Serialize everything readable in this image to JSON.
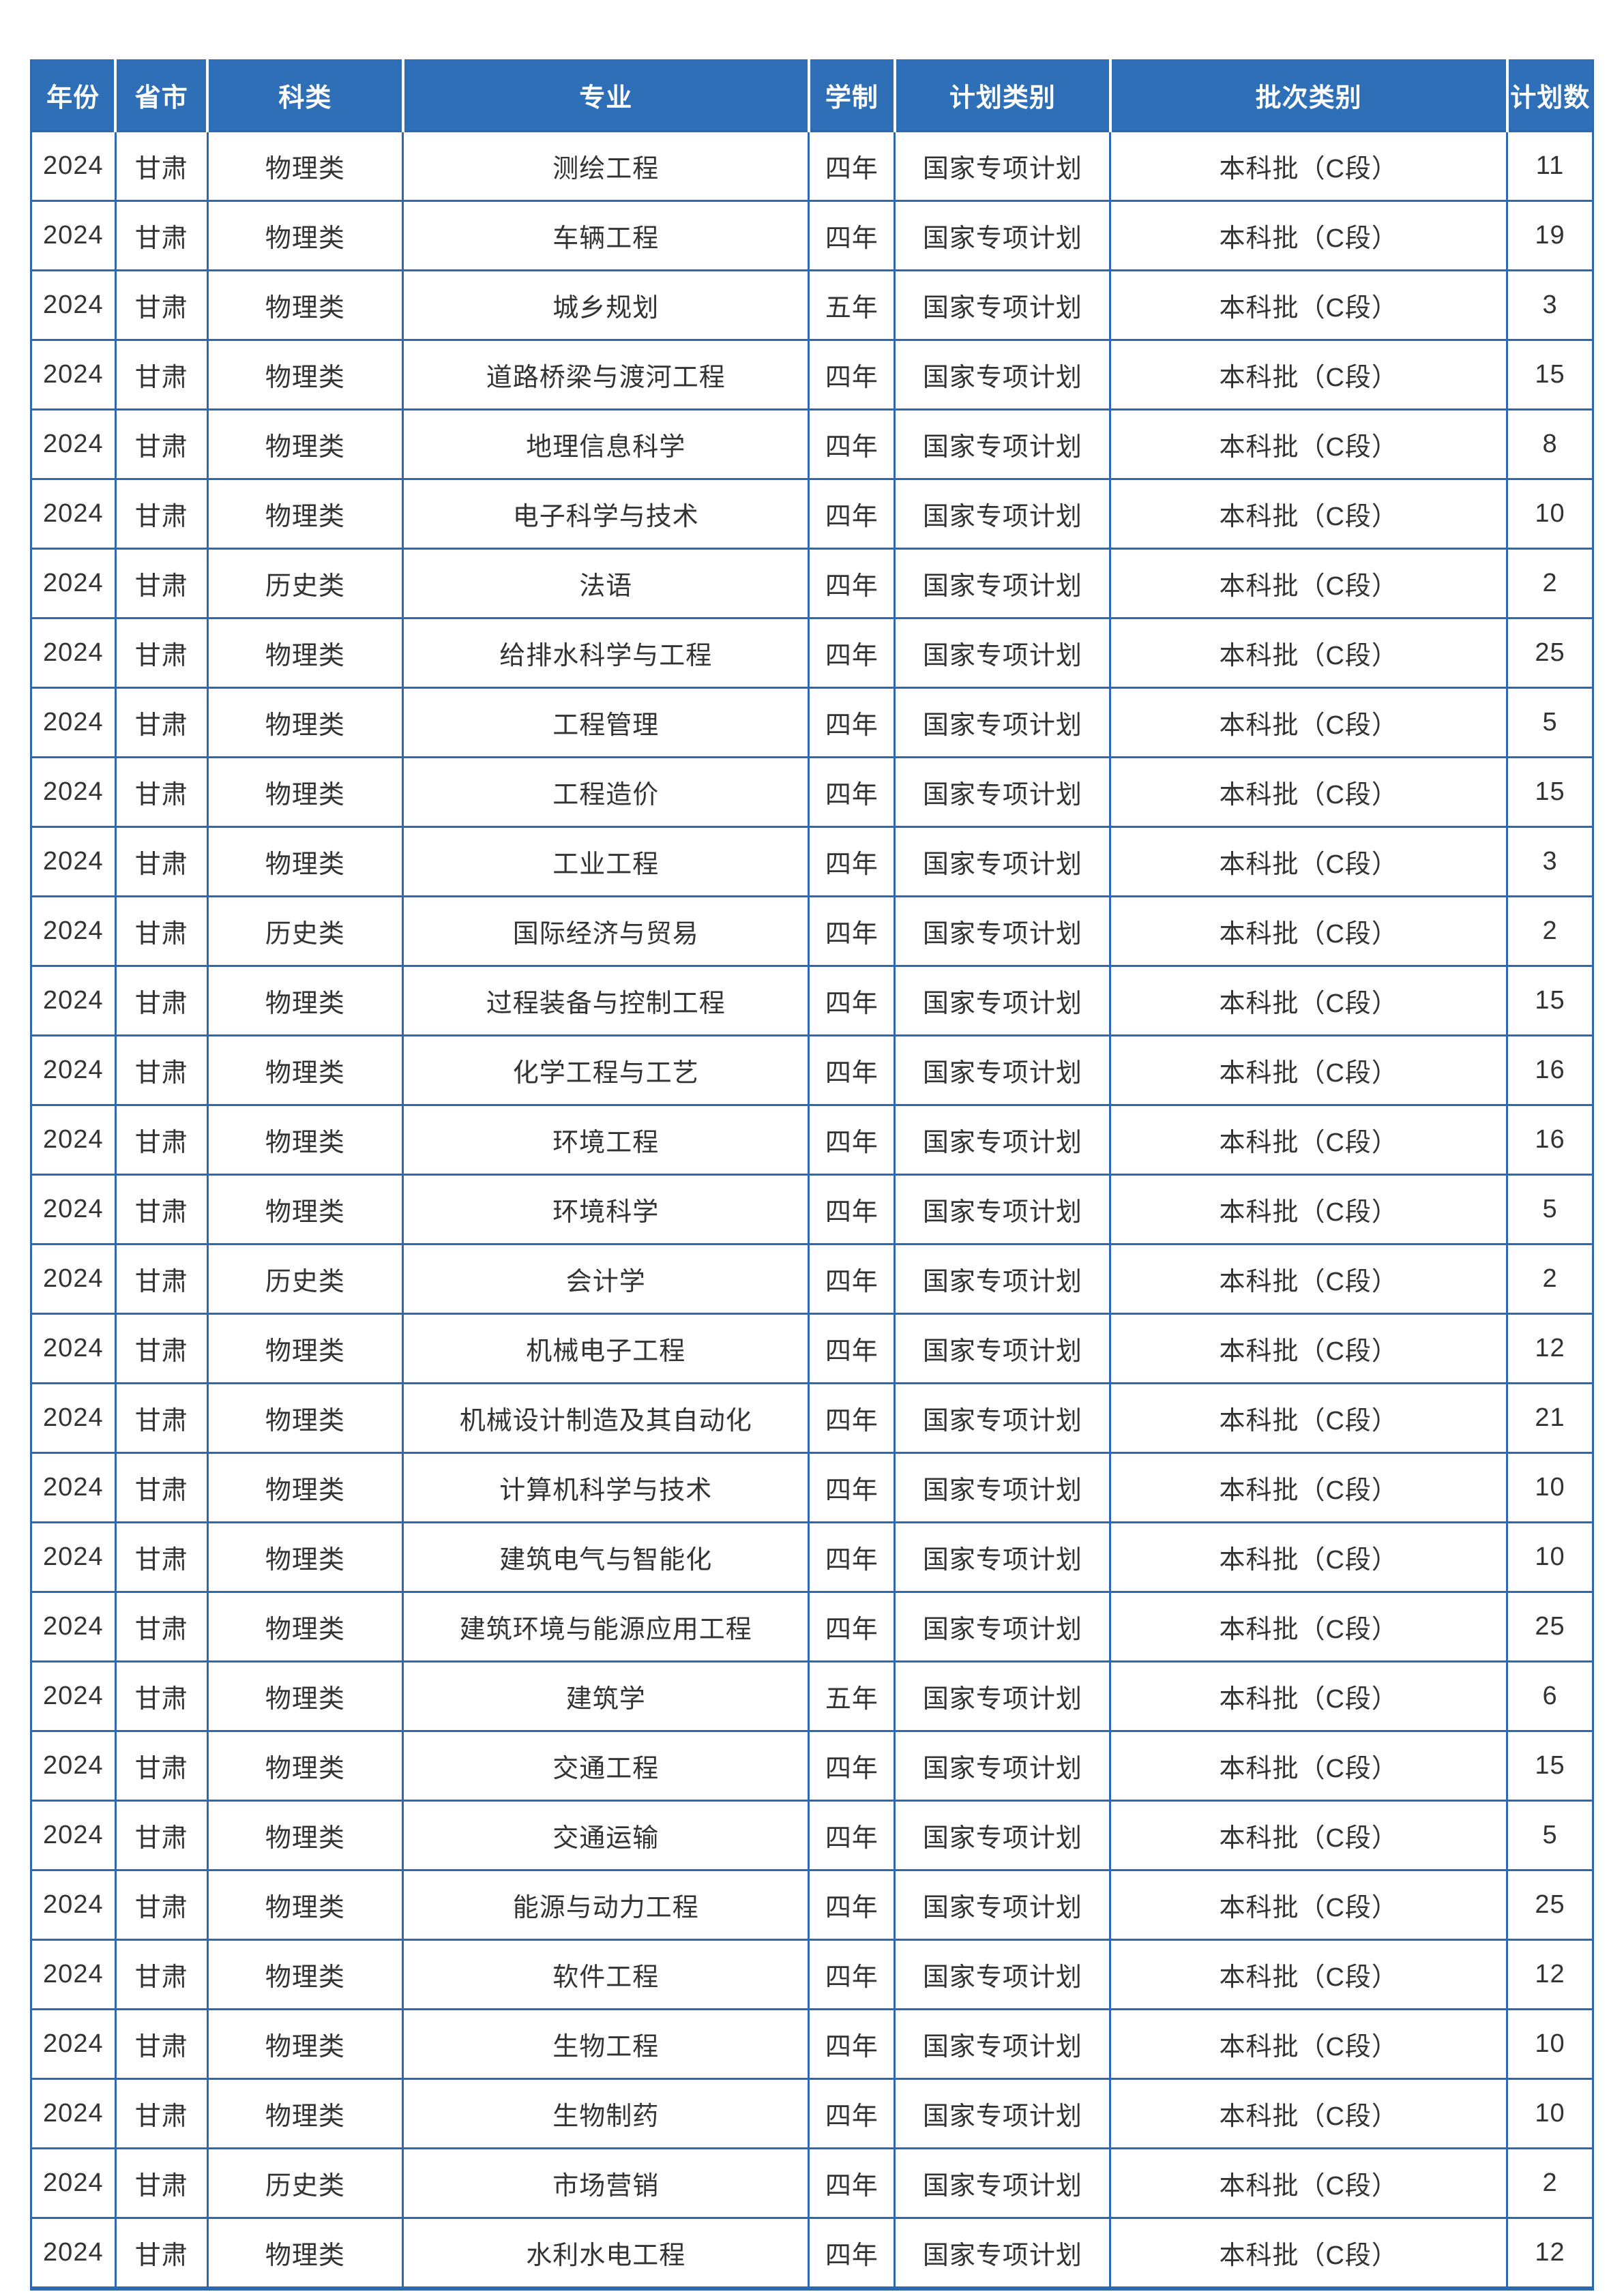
{
  "colors": {
    "header_bg": "#2e6fb7",
    "border": "#2d68b0",
    "header_text": "#ffffff",
    "body_text": "#333333",
    "page_bg": "#ffffff"
  },
  "table": {
    "columns": [
      "年份",
      "省市",
      "科类",
      "专业",
      "学制",
      "计划类别",
      "批次类别",
      "计划数"
    ],
    "column_width_percents": [
      5.4,
      5.9,
      12.5,
      26.0,
      5.5,
      13.8,
      25.4,
      5.5
    ],
    "rows": [
      [
        "2024",
        "甘肃",
        "物理类",
        "测绘工程",
        "四年",
        "国家专项计划",
        "本科批（C段）",
        "11"
      ],
      [
        "2024",
        "甘肃",
        "物理类",
        "车辆工程",
        "四年",
        "国家专项计划",
        "本科批（C段）",
        "19"
      ],
      [
        "2024",
        "甘肃",
        "物理类",
        "城乡规划",
        "五年",
        "国家专项计划",
        "本科批（C段）",
        "3"
      ],
      [
        "2024",
        "甘肃",
        "物理类",
        "道路桥梁与渡河工程",
        "四年",
        "国家专项计划",
        "本科批（C段）",
        "15"
      ],
      [
        "2024",
        "甘肃",
        "物理类",
        "地理信息科学",
        "四年",
        "国家专项计划",
        "本科批（C段）",
        "8"
      ],
      [
        "2024",
        "甘肃",
        "物理类",
        "电子科学与技术",
        "四年",
        "国家专项计划",
        "本科批（C段）",
        "10"
      ],
      [
        "2024",
        "甘肃",
        "历史类",
        "法语",
        "四年",
        "国家专项计划",
        "本科批（C段）",
        "2"
      ],
      [
        "2024",
        "甘肃",
        "物理类",
        "给排水科学与工程",
        "四年",
        "国家专项计划",
        "本科批（C段）",
        "25"
      ],
      [
        "2024",
        "甘肃",
        "物理类",
        "工程管理",
        "四年",
        "国家专项计划",
        "本科批（C段）",
        "5"
      ],
      [
        "2024",
        "甘肃",
        "物理类",
        "工程造价",
        "四年",
        "国家专项计划",
        "本科批（C段）",
        "15"
      ],
      [
        "2024",
        "甘肃",
        "物理类",
        "工业工程",
        "四年",
        "国家专项计划",
        "本科批（C段）",
        "3"
      ],
      [
        "2024",
        "甘肃",
        "历史类",
        "国际经济与贸易",
        "四年",
        "国家专项计划",
        "本科批（C段）",
        "2"
      ],
      [
        "2024",
        "甘肃",
        "物理类",
        "过程装备与控制工程",
        "四年",
        "国家专项计划",
        "本科批（C段）",
        "15"
      ],
      [
        "2024",
        "甘肃",
        "物理类",
        "化学工程与工艺",
        "四年",
        "国家专项计划",
        "本科批（C段）",
        "16"
      ],
      [
        "2024",
        "甘肃",
        "物理类",
        "环境工程",
        "四年",
        "国家专项计划",
        "本科批（C段）",
        "16"
      ],
      [
        "2024",
        "甘肃",
        "物理类",
        "环境科学",
        "四年",
        "国家专项计划",
        "本科批（C段）",
        "5"
      ],
      [
        "2024",
        "甘肃",
        "历史类",
        "会计学",
        "四年",
        "国家专项计划",
        "本科批（C段）",
        "2"
      ],
      [
        "2024",
        "甘肃",
        "物理类",
        "机械电子工程",
        "四年",
        "国家专项计划",
        "本科批（C段）",
        "12"
      ],
      [
        "2024",
        "甘肃",
        "物理类",
        "机械设计制造及其自动化",
        "四年",
        "国家专项计划",
        "本科批（C段）",
        "21"
      ],
      [
        "2024",
        "甘肃",
        "物理类",
        "计算机科学与技术",
        "四年",
        "国家专项计划",
        "本科批（C段）",
        "10"
      ],
      [
        "2024",
        "甘肃",
        "物理类",
        "建筑电气与智能化",
        "四年",
        "国家专项计划",
        "本科批（C段）",
        "10"
      ],
      [
        "2024",
        "甘肃",
        "物理类",
        "建筑环境与能源应用工程",
        "四年",
        "国家专项计划",
        "本科批（C段）",
        "25"
      ],
      [
        "2024",
        "甘肃",
        "物理类",
        "建筑学",
        "五年",
        "国家专项计划",
        "本科批（C段）",
        "6"
      ],
      [
        "2024",
        "甘肃",
        "物理类",
        "交通工程",
        "四年",
        "国家专项计划",
        "本科批（C段）",
        "15"
      ],
      [
        "2024",
        "甘肃",
        "物理类",
        "交通运输",
        "四年",
        "国家专项计划",
        "本科批（C段）",
        "5"
      ],
      [
        "2024",
        "甘肃",
        "物理类",
        "能源与动力工程",
        "四年",
        "国家专项计划",
        "本科批（C段）",
        "25"
      ],
      [
        "2024",
        "甘肃",
        "物理类",
        "软件工程",
        "四年",
        "国家专项计划",
        "本科批（C段）",
        "12"
      ],
      [
        "2024",
        "甘肃",
        "物理类",
        "生物工程",
        "四年",
        "国家专项计划",
        "本科批（C段）",
        "10"
      ],
      [
        "2024",
        "甘肃",
        "物理类",
        "生物制药",
        "四年",
        "国家专项计划",
        "本科批（C段）",
        "10"
      ],
      [
        "2024",
        "甘肃",
        "历史类",
        "市场营销",
        "四年",
        "国家专项计划",
        "本科批（C段）",
        "2"
      ],
      [
        "2024",
        "甘肃",
        "物理类",
        "水利水电工程",
        "四年",
        "国家专项计划",
        "本科批（C段）",
        "12"
      ]
    ]
  }
}
